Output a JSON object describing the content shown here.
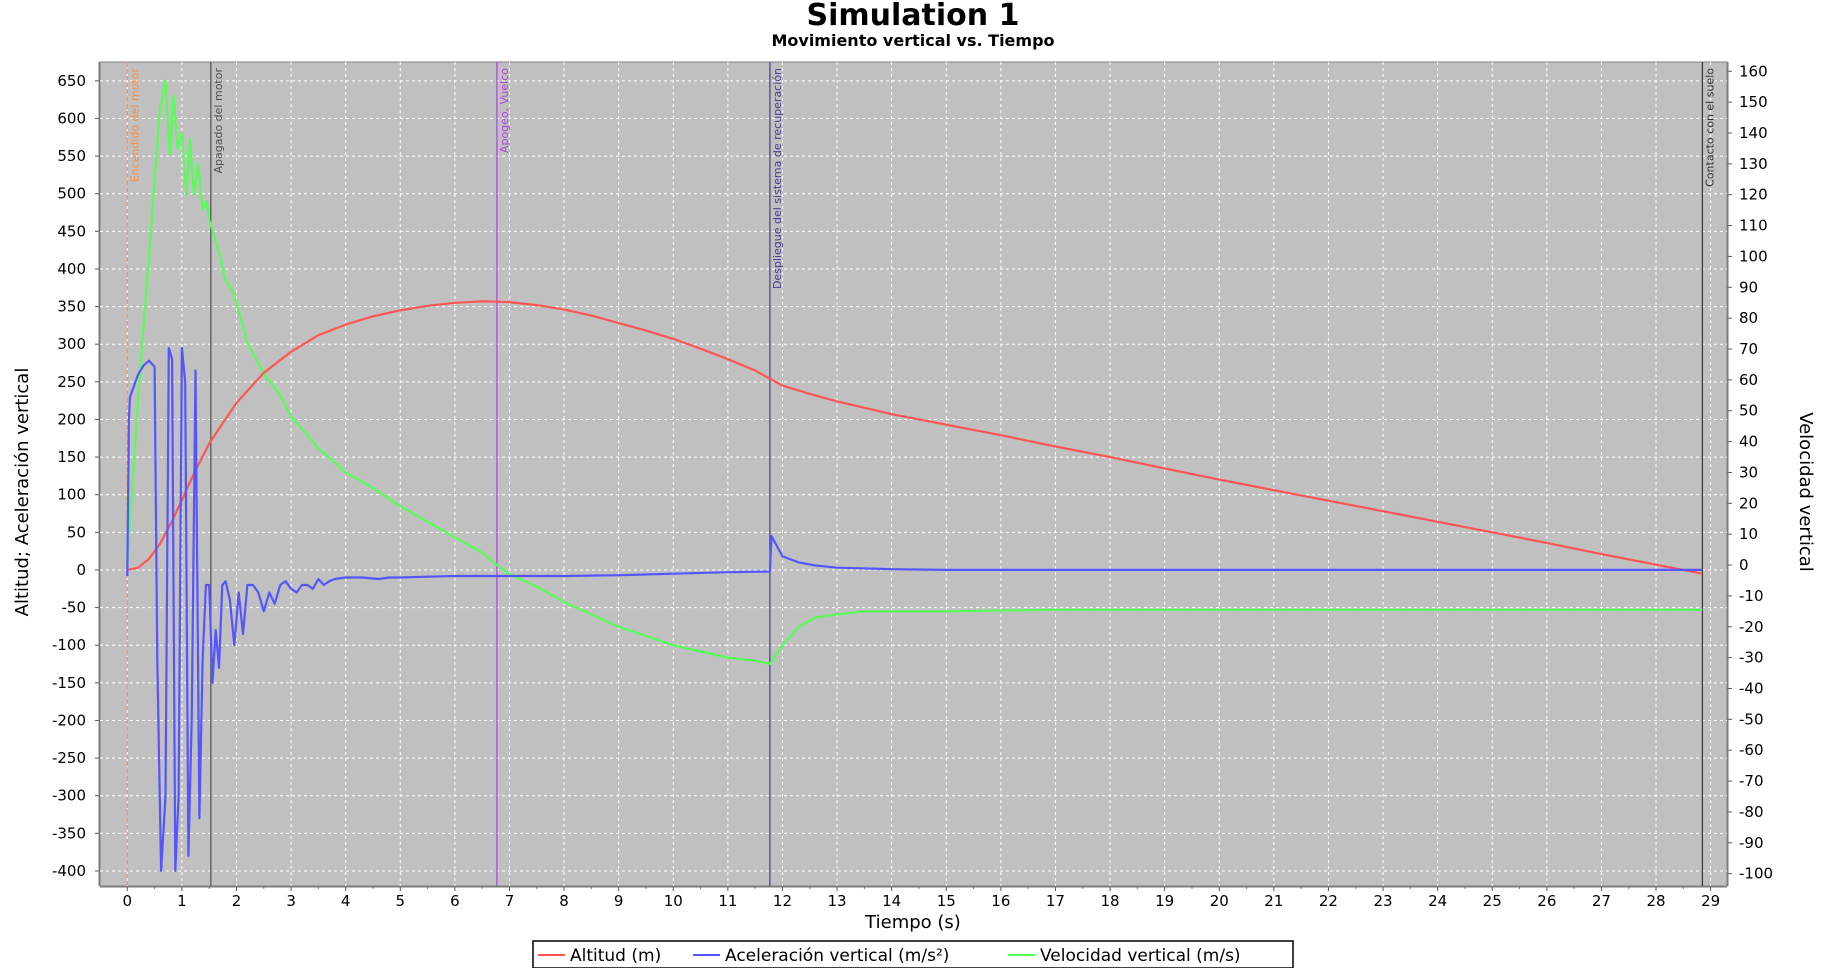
{
  "chart_data": {
    "type": "line",
    "title": "Simulation 1",
    "subtitle": "Movimiento vertical vs. Tiempo",
    "xlabel": "Tiempo (s)",
    "ylabel_left": "Altitud; Aceleración vertical",
    "ylabel_right": "Velocidad vertical",
    "xlim": [
      -0.5,
      29.3
    ],
    "ylim_left": [
      -420,
      675
    ],
    "ylim_right": [
      -104,
      163
    ],
    "x_ticks": [
      0,
      1,
      2,
      3,
      4,
      5,
      6,
      7,
      8,
      9,
      10,
      11,
      12,
      13,
      14,
      15,
      16,
      17,
      18,
      19,
      20,
      21,
      22,
      23,
      24,
      25,
      26,
      27,
      28,
      29
    ],
    "y_ticks_left": [
      -400,
      -350,
      -300,
      -250,
      -200,
      -150,
      -100,
      -50,
      0,
      50,
      100,
      150,
      200,
      250,
      300,
      350,
      400,
      450,
      500,
      550,
      600,
      650
    ],
    "y_ticks_right": [
      -100,
      -90,
      -80,
      -70,
      -60,
      -50,
      -40,
      -30,
      -20,
      -10,
      0,
      10,
      20,
      30,
      40,
      50,
      60,
      70,
      80,
      90,
      100,
      110,
      120,
      130,
      140,
      150,
      160
    ],
    "grid": true,
    "legend_position": "bottom",
    "colors": {
      "background": "#c0c0c0",
      "grid": "#ffffff",
      "altitud": "#ff5555",
      "aceleracion": "#5555ff",
      "velocidad": "#55ff55"
    },
    "events": [
      {
        "label": "Encendido del motor",
        "x": 0.0,
        "color": "#ff8c3c",
        "dashed": true
      },
      {
        "label": "Apagado del motor",
        "x": 1.53,
        "color": "#505050",
        "dashed": false
      },
      {
        "label": "Apogeo, Vuelco",
        "x": 6.77,
        "color": "#b040e0",
        "dashed": false
      },
      {
        "label": "Despliegue del sistema de recuperación",
        "x": 11.77,
        "color": "#404090",
        "dashed": false
      },
      {
        "label": "Contacto con el suelo",
        "x": 28.85,
        "color": "#303030",
        "dashed": false
      }
    ],
    "series": [
      {
        "name": "Altitud (m)",
        "axis": "left",
        "x": [
          0,
          0.2,
          0.4,
          0.6,
          0.8,
          1.0,
          1.2,
          1.5,
          2.0,
          2.5,
          3.0,
          3.5,
          4.0,
          4.5,
          5.0,
          5.5,
          6.0,
          6.5,
          7.0,
          7.5,
          8.0,
          8.5,
          9.0,
          9.5,
          10.0,
          10.5,
          11.0,
          11.5,
          11.8,
          12.0,
          12.5,
          13.0,
          14.0,
          15.0,
          16.0,
          17.0,
          18.0,
          19.0,
          20.0,
          21.0,
          22.0,
          23.0,
          24.0,
          25.0,
          26.0,
          27.0,
          28.0,
          28.85
        ],
        "values": [
          0,
          3,
          15,
          35,
          62,
          93,
          125,
          168,
          222,
          262,
          290,
          312,
          326,
          337,
          345,
          351,
          355,
          357,
          356,
          352,
          346,
          338,
          328,
          318,
          307,
          294,
          280,
          265,
          253,
          245,
          234,
          224,
          207,
          193,
          179,
          164,
          150,
          135,
          120,
          106,
          92,
          78,
          64,
          50,
          36,
          21,
          7,
          -5
        ]
      },
      {
        "name": "Aceleración vertical (m/s²)",
        "axis": "left",
        "x": [
          0,
          0.03,
          0.05,
          0.1,
          0.2,
          0.3,
          0.4,
          0.5,
          0.55,
          0.62,
          0.7,
          0.76,
          0.82,
          0.88,
          0.94,
          1.0,
          1.06,
          1.12,
          1.18,
          1.25,
          1.32,
          1.38,
          1.44,
          1.5,
          1.56,
          1.62,
          1.68,
          1.74,
          1.8,
          1.88,
          1.96,
          2.04,
          2.12,
          2.2,
          2.3,
          2.4,
          2.5,
          2.6,
          2.7,
          2.8,
          2.9,
          3.0,
          3.1,
          3.2,
          3.3,
          3.4,
          3.5,
          3.6,
          3.7,
          3.8,
          4.0,
          4.3,
          4.6,
          4.8,
          5.0,
          5.5,
          6.0,
          6.5,
          7.0,
          8.0,
          9.0,
          10.0,
          11.0,
          11.77,
          11.8,
          12.0,
          12.3,
          12.6,
          13.0,
          14.0,
          15.0,
          20.0,
          25.0,
          28.85
        ],
        "values": [
          -8,
          200,
          230,
          240,
          260,
          272,
          278,
          270,
          -120,
          -400,
          -300,
          295,
          280,
          -400,
          -300,
          295,
          250,
          -380,
          -200,
          265,
          -330,
          -120,
          -20,
          -20,
          -150,
          -80,
          -130,
          -20,
          -15,
          -40,
          -100,
          -30,
          -85,
          -20,
          -20,
          -30,
          -55,
          -30,
          -45,
          -20,
          -15,
          -25,
          -30,
          -20,
          -20,
          -25,
          -12,
          -20,
          -15,
          -12,
          -10,
          -10,
          -12,
          -10,
          -10,
          -9,
          -8,
          -8,
          -8,
          -8,
          -7,
          -5,
          -3,
          -2,
          45,
          18,
          10,
          6,
          3,
          1,
          0,
          0,
          0,
          0
        ]
      },
      {
        "name": "Velocidad vertical (m/s)",
        "axis": "right",
        "x": [
          0,
          0.1,
          0.2,
          0.3,
          0.4,
          0.5,
          0.6,
          0.7,
          0.78,
          0.85,
          0.92,
          1.0,
          1.08,
          1.15,
          1.22,
          1.3,
          1.38,
          1.45,
          1.5,
          1.6,
          1.7,
          1.8,
          1.9,
          2.0,
          2.2,
          2.5,
          2.8,
          3.0,
          3.5,
          4.0,
          4.5,
          5.0,
          5.5,
          6.0,
          6.5,
          6.77,
          7.0,
          7.5,
          8.0,
          8.5,
          9.0,
          9.5,
          10.0,
          10.5,
          11.0,
          11.5,
          11.77,
          12.0,
          12.3,
          12.6,
          13.0,
          13.5,
          14.0,
          15.0,
          17.0,
          20.0,
          25.0,
          28.85
        ],
        "values": [
          0,
          28,
          55,
          78,
          100,
          125,
          148,
          157,
          133,
          152,
          135,
          140,
          120,
          138,
          120,
          130,
          115,
          118,
          112,
          106,
          100,
          92,
          90,
          85,
          72,
          62,
          55,
          48,
          38,
          30,
          25,
          19,
          14,
          9,
          4,
          0,
          -3,
          -7,
          -12,
          -16,
          -20,
          -23,
          -26,
          -28,
          -30,
          -31,
          -32,
          -26,
          -20,
          -17,
          -16,
          -15,
          -15,
          -15,
          -14.5,
          -14.5,
          -14.5,
          -14.5
        ]
      }
    ]
  }
}
